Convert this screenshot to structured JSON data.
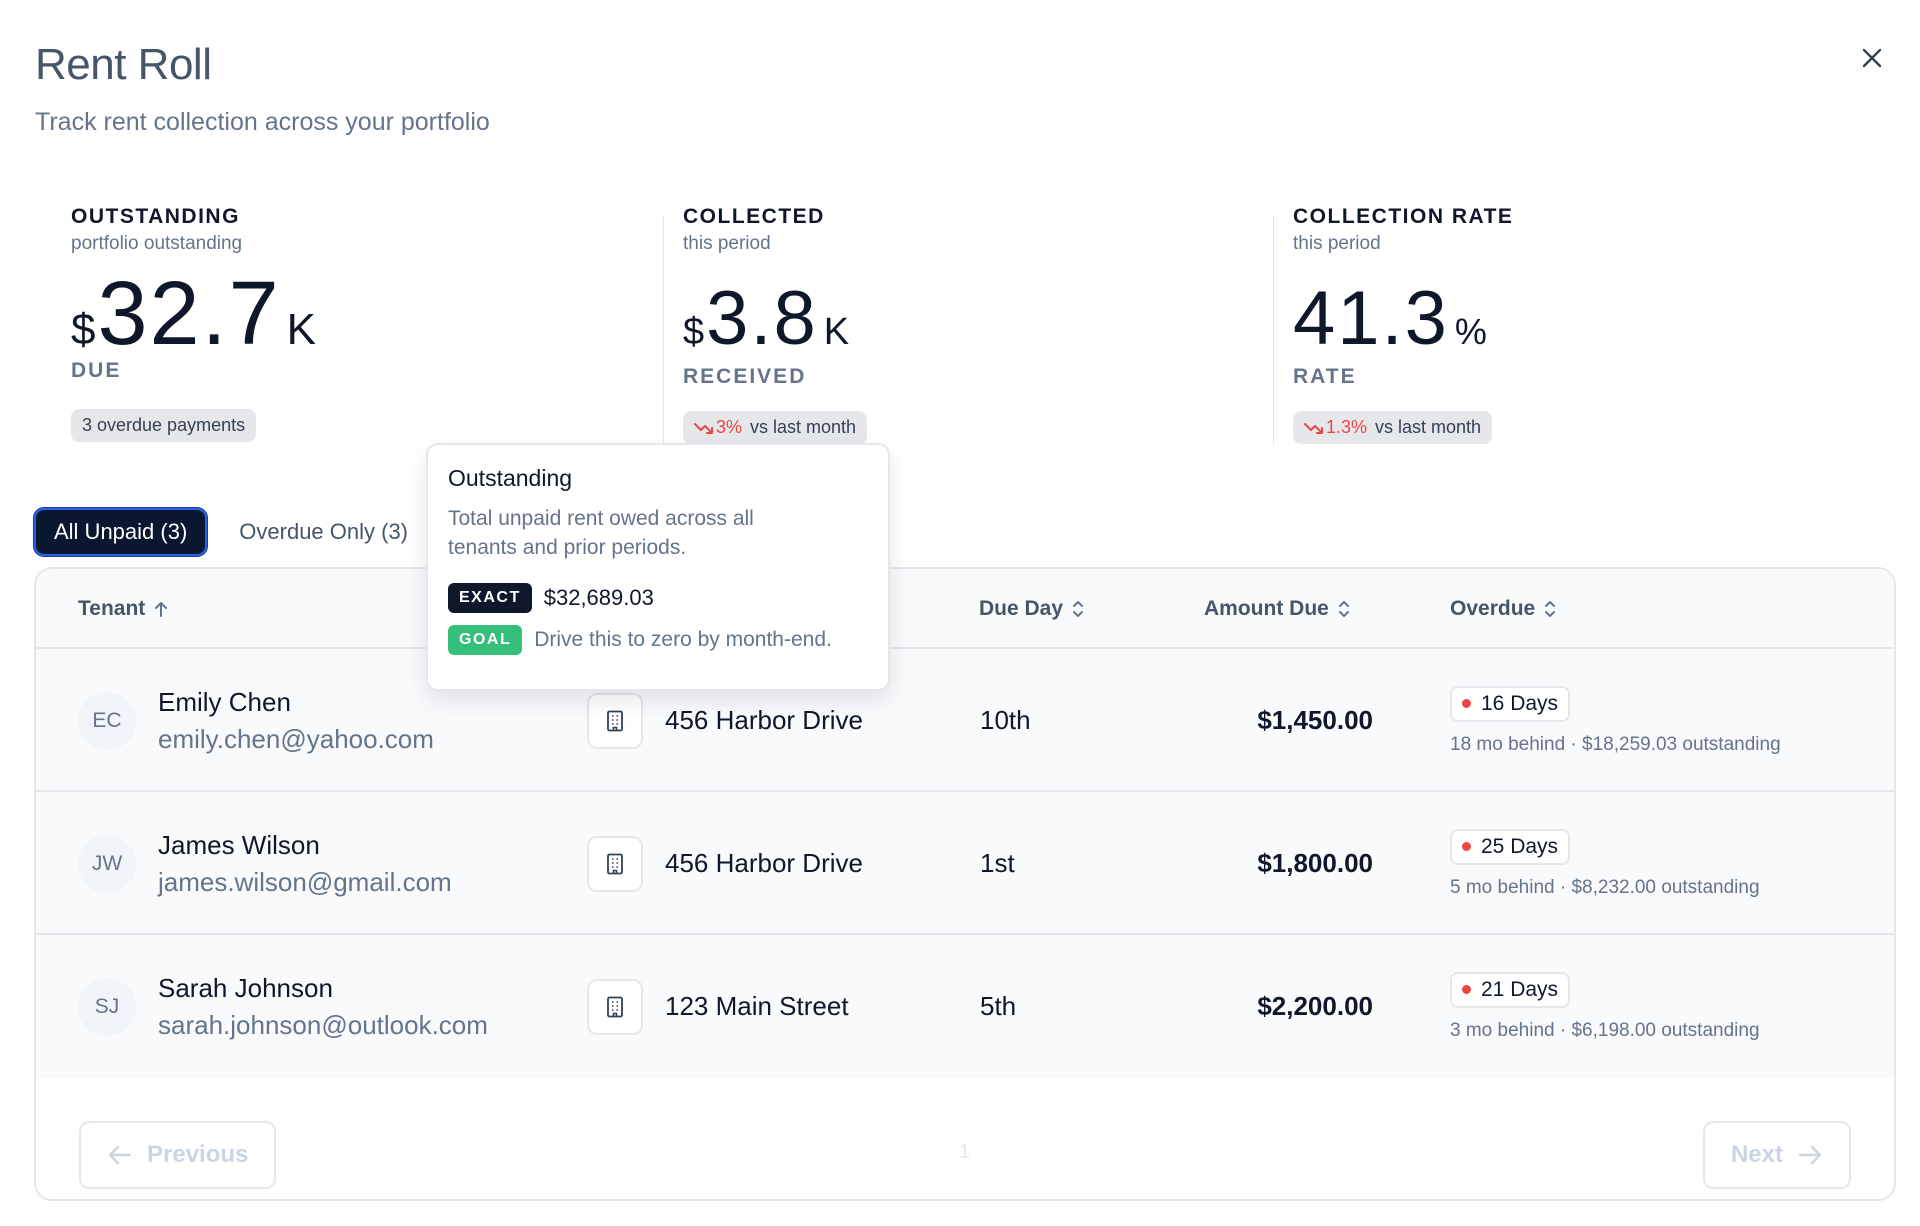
{
  "header": {
    "title": "Rent Roll",
    "subtitle": "Track rent collection across your portfolio"
  },
  "metrics": [
    {
      "label": "OUTSTANDING",
      "sub": "portfolio outstanding",
      "prefix": "$",
      "number": "32.7",
      "suffix": "K",
      "caption": "DUE",
      "pill": "3 overdue payments"
    },
    {
      "label": "COLLECTED",
      "sub": "this period",
      "prefix": "$",
      "number": "3.8",
      "suffix": "K",
      "caption": "RECEIVED",
      "pill_delta": "3%",
      "pill_text": "vs last month"
    },
    {
      "label": "COLLECTION RATE",
      "sub": "this period",
      "number": "41.3",
      "suffix": "%",
      "caption": "RATE",
      "pill_delta": "1.3%",
      "pill_text": "vs last month"
    }
  ],
  "tabs": [
    {
      "label": "All Unpaid (3)",
      "active": true
    },
    {
      "label": "Overdue Only (3)",
      "active": false
    }
  ],
  "table": {
    "headers": {
      "tenant": "Tenant",
      "due_day": "Due Day",
      "amount_due": "Amount Due",
      "overdue": "Overdue"
    },
    "rows": [
      {
        "initials": "EC",
        "name": "Emily Chen",
        "email": "emily.chen@yahoo.com",
        "property": "456 Harbor Drive",
        "due_day": "10th",
        "amount": "$1,450.00",
        "overdue_days": "16 Days",
        "overdue_detail": "18 mo behind · $18,259.03 outstanding"
      },
      {
        "initials": "JW",
        "name": "James Wilson",
        "email": "james.wilson@gmail.com",
        "property": "456 Harbor Drive",
        "due_day": "1st",
        "amount": "$1,800.00",
        "overdue_days": "25 Days",
        "overdue_detail": "5 mo behind · $8,232.00 outstanding"
      },
      {
        "initials": "SJ",
        "name": "Sarah Johnson",
        "email": "sarah.johnson@outlook.com",
        "property": "123 Main Street",
        "due_day": "5th",
        "amount": "$2,200.00",
        "overdue_days": "21 Days",
        "overdue_detail": "3 mo behind · $6,198.00 outstanding"
      }
    ]
  },
  "pagination": {
    "previous": "Previous",
    "next": "Next",
    "page": "1"
  },
  "tooltip": {
    "title": "Outstanding",
    "description": "Total unpaid rent owed across all tenants and prior periods.",
    "exact_tag": "EXACT",
    "exact_value": "$32,689.03",
    "goal_tag": "GOAL",
    "goal_text": "Drive this to zero by month-end."
  },
  "colors": {
    "accent_dark": "#0b1730",
    "focus_ring": "#2563eb",
    "negative": "#ef4444",
    "goal": "#34c07a"
  },
  "icons": {
    "close": "close-icon",
    "sort_asc": "arrow-up-icon",
    "sort": "sort-updown-icon",
    "building": "building-icon",
    "trend_down": "trend-down-icon",
    "prev": "arrow-left-icon",
    "next": "arrow-right-icon"
  }
}
